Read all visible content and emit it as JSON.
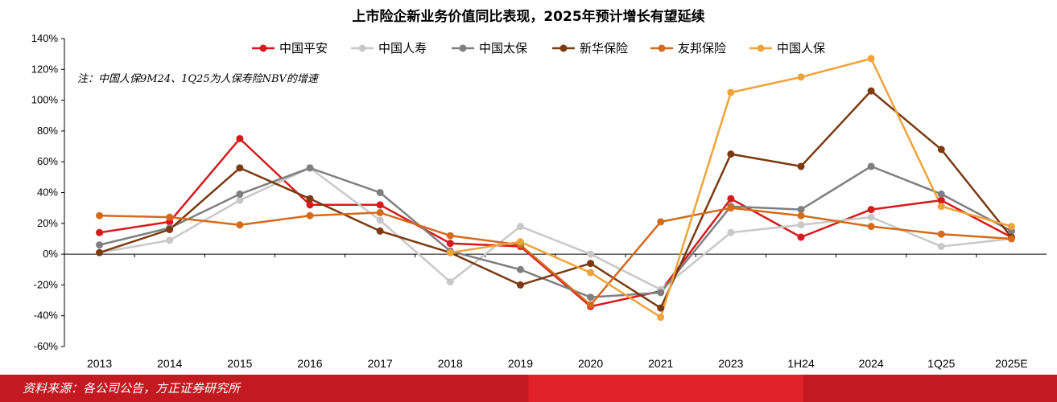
{
  "title": "上市险企新业务价值同比表现，2025年预计增长有望延续",
  "footer": {
    "source": "资料来源：各公司公告，方正证券研究所"
  },
  "chart_data": {
    "type": "line",
    "categories": [
      "2013",
      "2014",
      "2015",
      "2016",
      "2017",
      "2018",
      "2019",
      "2020",
      "2021",
      "2023",
      "1H24",
      "2024",
      "1Q25",
      "2025E"
    ],
    "ylim": [
      -60,
      140
    ],
    "yticks": [
      -60,
      -40,
      -20,
      0,
      20,
      40,
      60,
      80,
      100,
      120,
      140
    ],
    "ytick_labels": [
      "-60%",
      "-40%",
      "-20%",
      "0%",
      "20%",
      "40%",
      "60%",
      "80%",
      "100%",
      "120%",
      "140%"
    ],
    "xlabel": "",
    "ylabel": "",
    "annotation": "注：中国人保9M24、1Q25为人保寿险NBV的增速",
    "legend_position": "top",
    "grid": false,
    "series": [
      {
        "name": "中国平安",
        "color": "#d7191c",
        "values": [
          14,
          21,
          75,
          32,
          32,
          7,
          5,
          -34,
          -24,
          36,
          11,
          29,
          35,
          11
        ]
      },
      {
        "name": "中国人寿",
        "color": "#c8c8c8",
        "values": [
          1,
          9,
          35,
          56,
          22,
          -18,
          18,
          0,
          -23,
          14,
          19,
          24,
          5,
          10
        ]
      },
      {
        "name": "中国太保",
        "color": "#7f7f7f",
        "values": [
          6,
          17,
          39,
          56,
          40,
          2,
          -10,
          -28,
          -25,
          31,
          29,
          57,
          39,
          15
        ]
      },
      {
        "name": "新华保险",
        "color": "#7b3a10",
        "values": [
          1,
          16,
          56,
          36,
          15,
          1,
          -20,
          -6,
          -35,
          65,
          57,
          106,
          68,
          11
        ]
      },
      {
        "name": "友邦保险",
        "color": "#d46a1c",
        "values": [
          25,
          24,
          19,
          25,
          27,
          12,
          6,
          -33,
          21,
          30,
          25,
          18,
          13,
          10
        ]
      },
      {
        "name": "中国人保",
        "color": "#f0a33a",
        "values": [
          null,
          null,
          null,
          null,
          null,
          1,
          8,
          -12,
          -41,
          105,
          115,
          127,
          31,
          18
        ]
      }
    ]
  }
}
